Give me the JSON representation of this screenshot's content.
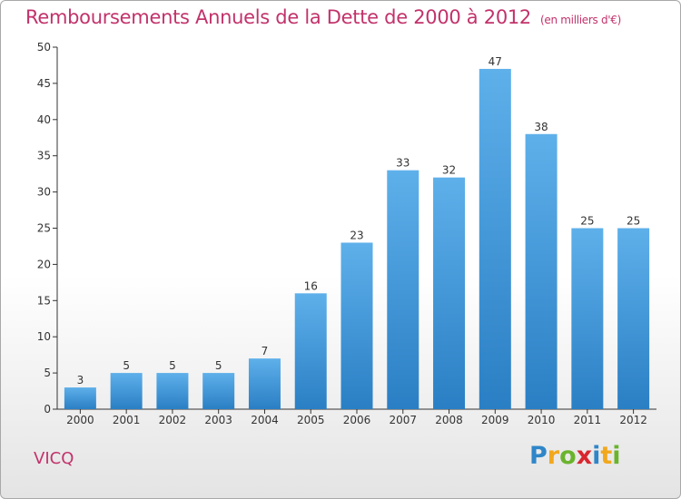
{
  "header": {
    "title": "Remboursements Annuels de la Dette de 2000 à 2012",
    "unit": "(en milliers d'€)"
  },
  "commune": "VICQ",
  "logo": {
    "text": "Proxiti"
  },
  "colors": {
    "title": "#c2326b",
    "bar_top": "#5eb0ea",
    "bar_bottom": "#2a7fc4",
    "axis": "#333333",
    "grid": "#dddddd"
  },
  "chart_data": {
    "type": "bar",
    "categories": [
      "2000",
      "2001",
      "2002",
      "2003",
      "2004",
      "2005",
      "2006",
      "2007",
      "2008",
      "2009",
      "2010",
      "2011",
      "2012"
    ],
    "values": [
      3,
      5,
      5,
      5,
      7,
      16,
      23,
      33,
      32,
      47,
      38,
      25,
      25
    ],
    "ylim": [
      0,
      50
    ],
    "yticks": [
      0,
      5,
      10,
      15,
      20,
      25,
      30,
      35,
      40,
      45,
      50
    ],
    "title": "Remboursements Annuels de la Dette de 2000 à 2012",
    "xlabel": "",
    "ylabel": "",
    "grid": false,
    "data_labels": true
  }
}
